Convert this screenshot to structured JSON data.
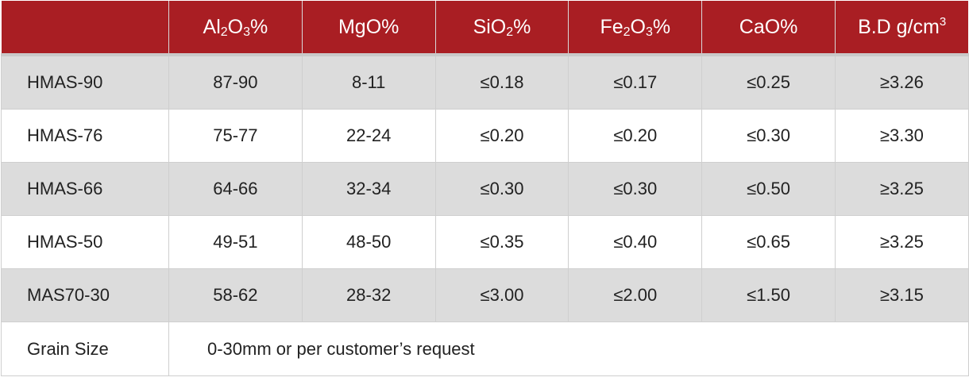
{
  "header": {
    "cols": [
      {
        "base": "",
        "parts": []
      },
      {
        "parts": [
          {
            "t": "Al"
          },
          {
            "sub": "2"
          },
          {
            "t": "O"
          },
          {
            "sub": "3"
          },
          {
            "t": "%"
          }
        ]
      },
      {
        "parts": [
          {
            "t": "MgO%"
          }
        ]
      },
      {
        "parts": [
          {
            "t": "SiO"
          },
          {
            "sub": "2"
          },
          {
            "t": "%"
          }
        ]
      },
      {
        "parts": [
          {
            "t": "Fe"
          },
          {
            "sub": "2"
          },
          {
            "t": "O"
          },
          {
            "sub": "3"
          },
          {
            "t": "%"
          }
        ]
      },
      {
        "parts": [
          {
            "t": "CaO%"
          }
        ]
      },
      {
        "parts": [
          {
            "t": "B.D g/cm"
          },
          {
            "sup": "3"
          }
        ]
      }
    ]
  },
  "rows": [
    {
      "name": "HMAS-90",
      "values": [
        "87-90",
        "8-11",
        "≤0.18",
        "≤0.17",
        "≤0.25",
        "≥3.26"
      ]
    },
    {
      "name": "HMAS-76",
      "values": [
        "75-77",
        "22-24",
        "≤0.20",
        "≤0.20",
        "≤0.30",
        "≥3.30"
      ]
    },
    {
      "name": "HMAS-66",
      "values": [
        "64-66",
        "32-34",
        "≤0.30",
        "≤0.30",
        "≤0.50",
        "≥3.25"
      ]
    },
    {
      "name": "HMAS-50",
      "values": [
        "49-51",
        "48-50",
        "≤0.35",
        "≤0.40",
        "≤0.65",
        "≥3.25"
      ]
    },
    {
      "name": "MAS70-30",
      "values": [
        "58-62",
        "28-32",
        "≤3.00",
        "≤2.00",
        "≤1.50",
        "≥3.15"
      ]
    }
  ],
  "grain": {
    "label": "Grain Size",
    "note": "0-30mm or per customer’s request"
  },
  "colors": {
    "header_bg": "#a91e23",
    "shade_row": "#dcdcdc"
  }
}
